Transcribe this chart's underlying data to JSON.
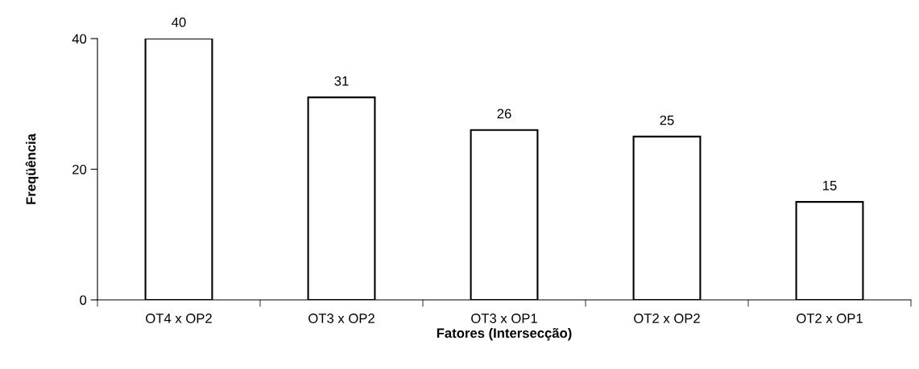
{
  "chart_data": {
    "type": "bar",
    "xlabel": "Fatores (Intersecção)",
    "ylabel": "Freqüência",
    "categories": [
      "OT4 x OP2",
      "OT3 x OP2",
      "OT3 x OP1",
      "OT2 x OP2",
      "OT2 x OP1"
    ],
    "values": [
      40,
      31,
      26,
      25,
      15
    ],
    "color": "#ffffff",
    "ylim": [
      0,
      40
    ],
    "yticks": [
      0,
      20,
      40
    ],
    "grid": false,
    "legend": false,
    "data_labels": true
  }
}
